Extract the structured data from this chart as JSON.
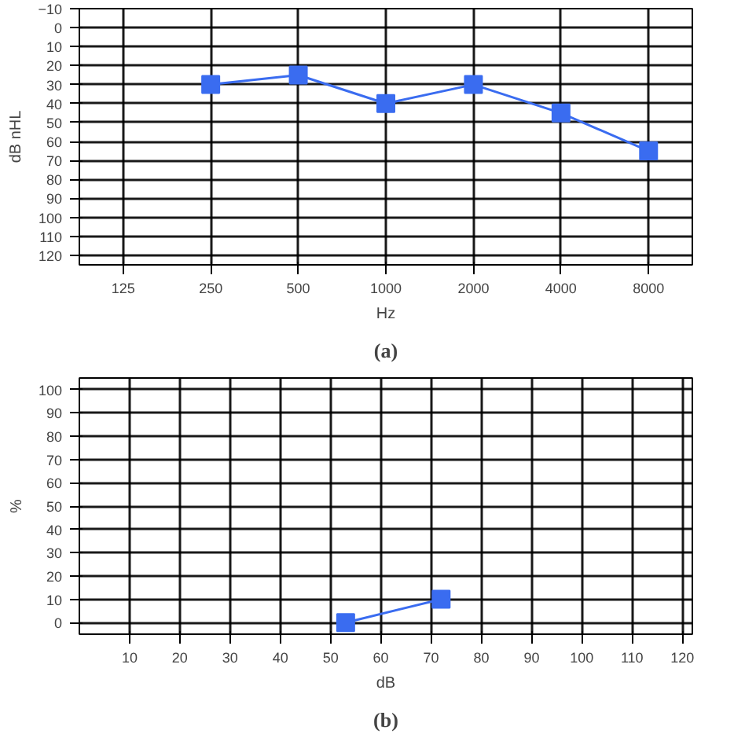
{
  "chart_data": [
    {
      "type": "line",
      "title": "(a)",
      "xlabel": "Hz",
      "ylabel": "dB nHL",
      "categories": [
        "125",
        "250",
        "500",
        "1000",
        "2000",
        "4000",
        "8000"
      ],
      "series": [
        {
          "color": "#3a6cf0",
          "values": [
            null,
            30,
            25,
            40,
            30,
            45,
            65
          ]
        }
      ],
      "ylim": [
        125,
        -10
      ],
      "yticks": [
        -10,
        0,
        10,
        20,
        30,
        40,
        50,
        60,
        70,
        80,
        90,
        100,
        110,
        120
      ],
      "grid": true,
      "marker": "square",
      "line_style": "solid"
    },
    {
      "type": "line",
      "title": "(b)",
      "xlabel": "dB",
      "ylabel": "%",
      "x": [
        53,
        72
      ],
      "series": [
        {
          "color": "#3a6cf0",
          "values": [
            0,
            10
          ]
        }
      ],
      "xlim": [
        0,
        122
      ],
      "xticks": [
        10,
        20,
        30,
        40,
        50,
        60,
        70,
        80,
        90,
        100,
        110,
        120
      ],
      "ylim": [
        -5,
        105
      ],
      "yticks": [
        0,
        10,
        20,
        30,
        40,
        50,
        60,
        70,
        80,
        90,
        100
      ],
      "grid": true,
      "marker": "square",
      "line_style": "solid"
    }
  ]
}
